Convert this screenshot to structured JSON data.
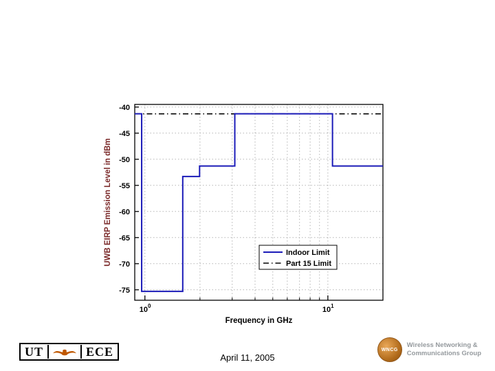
{
  "chart_data": {
    "type": "line",
    "title": "",
    "xlabel": "Frequency in GHz",
    "ylabel": "UWB EIRP Emission Level in dBm",
    "ylabel_color": "#7a2828",
    "xlabel_color": "#000000",
    "x_scale": "log",
    "xlim": [
      0.88,
      20
    ],
    "ylim": [
      -77,
      -39.5
    ],
    "yticks": [
      -75,
      -70,
      -65,
      -60,
      -55,
      -50,
      -45,
      -40
    ],
    "xticks": [
      {
        "value": 1,
        "base": "10",
        "exp": "0"
      },
      {
        "value": 10,
        "base": "10",
        "exp": "1"
      }
    ],
    "x_grid_values": [
      1,
      2,
      3,
      4,
      5,
      6,
      7,
      8,
      9,
      10,
      20
    ],
    "x_minor_ticks": [
      2,
      3,
      4,
      5,
      6,
      7,
      8,
      9,
      20
    ],
    "grid": true,
    "legend": {
      "position": "inside-right",
      "entries": [
        "Indoor Limit",
        "Part 15 Limit"
      ]
    },
    "series": [
      {
        "name": "Indoor Limit",
        "color": "#1a1ab8",
        "style": "solid",
        "width": 2,
        "points": [
          [
            0.88,
            -41.3
          ],
          [
            0.96,
            -41.3
          ],
          [
            0.96,
            -75.3
          ],
          [
            1.61,
            -75.3
          ],
          [
            1.61,
            -53.3
          ],
          [
            1.99,
            -53.3
          ],
          [
            1.99,
            -51.3
          ],
          [
            3.1,
            -51.3
          ],
          [
            3.1,
            -41.3
          ],
          [
            10.6,
            -41.3
          ],
          [
            10.6,
            -51.3
          ],
          [
            20,
            -51.3
          ]
        ]
      },
      {
        "name": "Part 15 Limit",
        "color": "#000000",
        "style": "dashdot",
        "width": 1.6,
        "points": [
          [
            0.88,
            -41.3
          ],
          [
            20,
            -41.3
          ]
        ]
      }
    ]
  },
  "footer": {
    "date_text": "April 11, 2005"
  },
  "logos": {
    "ut_ece": {
      "left": "UT",
      "right": "ECE",
      "longhorn_color": "#bf5700"
    },
    "wncg": {
      "abbr": "WNCG",
      "line1": "Wireless Networking &",
      "line2": "Communications Group",
      "circle_color": "#c87a28"
    }
  }
}
